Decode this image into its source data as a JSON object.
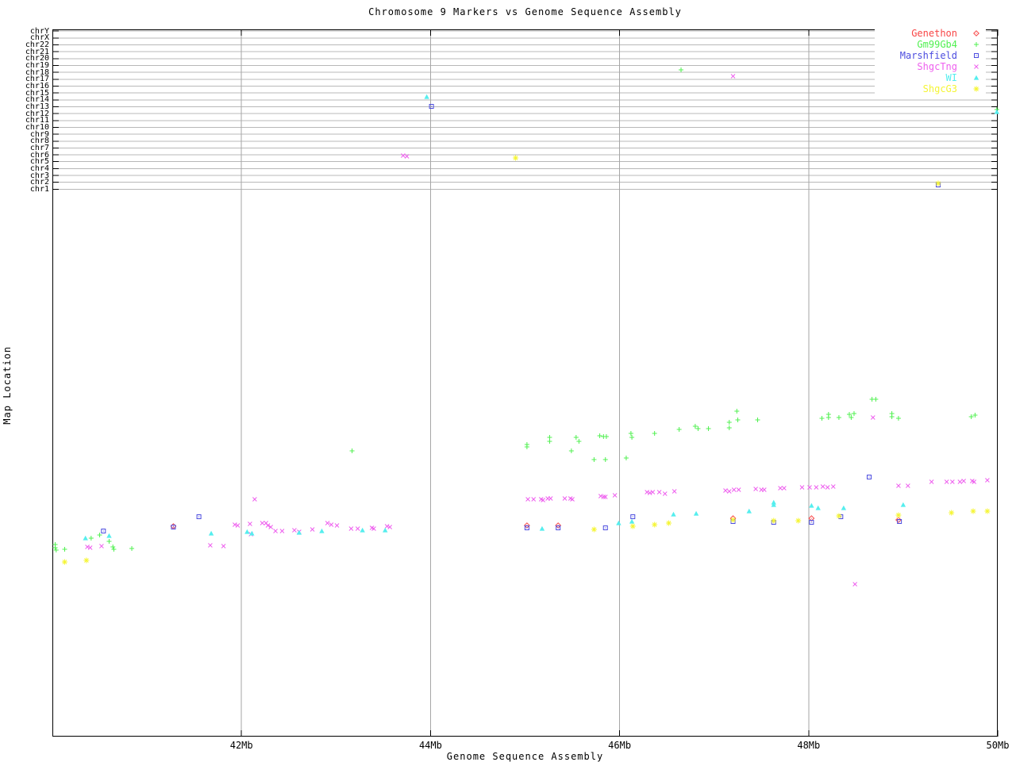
{
  "chart_data": {
    "type": "scatter",
    "title": "Chromosome 9 Markers vs Genome Sequence Assembly",
    "xlabel": "Genome Sequence Assembly",
    "ylabel": "Map Location",
    "x_range_mb": [
      40,
      50
    ],
    "x_ticks": [
      {
        "label": "42Mb",
        "mb": 42
      },
      {
        "label": "44Mb",
        "mb": 44
      },
      {
        "label": "46Mb",
        "mb": 46
      },
      {
        "label": "48Mb",
        "mb": 48
      },
      {
        "label": "50Mb",
        "mb": 50
      }
    ],
    "chromosome_rows": [
      "chrY",
      "chrX",
      "chr22",
      "chr21",
      "chr20",
      "chr19",
      "chr18",
      "chr17",
      "chr16",
      "chr15",
      "chr14",
      "chr13",
      "chr12",
      "chr11",
      "chr10",
      "chr9",
      "chr8",
      "chr7",
      "chr6",
      "chr5",
      "chr4",
      "chr3",
      "chr2",
      "chr1"
    ],
    "grid": true,
    "legend_position": "top-right",
    "y_units": "screen px (map-location axis is unlabeled below the chromosome band)",
    "series": [
      {
        "name": "Genethon",
        "marker": "diamond",
        "color": "#f84545",
        "points": [
          [
            41.28,
            663
          ],
          [
            45.02,
            662
          ],
          [
            45.35,
            662
          ],
          [
            47.2,
            653
          ],
          [
            48.03,
            653
          ],
          [
            48.95,
            655
          ]
        ]
      },
      {
        "name": "Gm99Gb4",
        "marker": "plus",
        "color": "#50f050",
        "points": [
          [
            46.65,
            88
          ],
          [
            49.99,
            138
          ],
          [
            40.03,
            686
          ],
          [
            40.03,
            690
          ],
          [
            40.04,
            693
          ],
          [
            40.13,
            692
          ],
          [
            40.41,
            678
          ],
          [
            40.5,
            674
          ],
          [
            40.6,
            682
          ],
          [
            40.64,
            689
          ],
          [
            40.65,
            692
          ],
          [
            40.84,
            691
          ],
          [
            43.17,
            568
          ],
          [
            45.02,
            560
          ],
          [
            45.02,
            563
          ],
          [
            45.26,
            551
          ],
          [
            45.26,
            556
          ],
          [
            45.49,
            568
          ],
          [
            45.54,
            551
          ],
          [
            45.57,
            556
          ],
          [
            45.73,
            579
          ],
          [
            45.79,
            549
          ],
          [
            45.83,
            550
          ],
          [
            45.86,
            550
          ],
          [
            45.85,
            579
          ],
          [
            46.07,
            577
          ],
          [
            46.12,
            546
          ],
          [
            46.13,
            551
          ],
          [
            46.37,
            546
          ],
          [
            46.63,
            541
          ],
          [
            46.8,
            537
          ],
          [
            46.83,
            540
          ],
          [
            46.94,
            540
          ],
          [
            47.16,
            532
          ],
          [
            47.16,
            539
          ],
          [
            47.24,
            518
          ],
          [
            47.25,
            529
          ],
          [
            47.46,
            529
          ],
          [
            48.14,
            527
          ],
          [
            48.21,
            522
          ],
          [
            48.21,
            526
          ],
          [
            48.32,
            526
          ],
          [
            48.43,
            522
          ],
          [
            48.45,
            526
          ],
          [
            48.48,
            521
          ],
          [
            48.67,
            503
          ],
          [
            48.71,
            503
          ],
          [
            48.88,
            521
          ],
          [
            48.88,
            525
          ],
          [
            48.95,
            527
          ],
          [
            49.72,
            525
          ],
          [
            49.76,
            523
          ]
        ]
      },
      {
        "name": "Marshfield",
        "marker": "square",
        "color": "#4c4cdf",
        "points": [
          [
            44.01,
            134
          ],
          [
            49.37,
            233
          ],
          [
            40.54,
            669
          ],
          [
            41.28,
            664
          ],
          [
            41.55,
            651
          ],
          [
            45.02,
            665
          ],
          [
            45.35,
            665
          ],
          [
            45.85,
            665
          ],
          [
            46.14,
            651
          ],
          [
            47.2,
            657
          ],
          [
            47.63,
            658
          ],
          [
            48.03,
            658
          ],
          [
            48.34,
            651
          ],
          [
            48.64,
            601
          ],
          [
            48.96,
            657
          ]
        ]
      },
      {
        "name": "ShgcTng",
        "marker": "x",
        "color": "#ee5fee",
        "points": [
          [
            47.2,
            96
          ],
          [
            43.71,
            196
          ],
          [
            43.75,
            197
          ],
          [
            40.37,
            689
          ],
          [
            40.4,
            690
          ],
          [
            40.52,
            688
          ],
          [
            41.67,
            687
          ],
          [
            41.81,
            688
          ],
          [
            41.93,
            661
          ],
          [
            41.96,
            662
          ],
          [
            42.09,
            660
          ],
          [
            42.1,
            673
          ],
          [
            42.14,
            629
          ],
          [
            42.22,
            659
          ],
          [
            42.26,
            659
          ],
          [
            42.28,
            662
          ],
          [
            42.31,
            664
          ],
          [
            42.36,
            669
          ],
          [
            42.43,
            669
          ],
          [
            42.56,
            668
          ],
          [
            42.61,
            670
          ],
          [
            42.75,
            667
          ],
          [
            42.91,
            659
          ],
          [
            42.95,
            661
          ],
          [
            43.01,
            662
          ],
          [
            43.16,
            666
          ],
          [
            43.23,
            666
          ],
          [
            43.38,
            665
          ],
          [
            43.4,
            666
          ],
          [
            43.54,
            663
          ],
          [
            43.57,
            664
          ],
          [
            45.03,
            629
          ],
          [
            45.09,
            629
          ],
          [
            45.17,
            629
          ],
          [
            45.19,
            630
          ],
          [
            45.24,
            628
          ],
          [
            45.27,
            628
          ],
          [
            45.42,
            628
          ],
          [
            45.48,
            628
          ],
          [
            45.5,
            629
          ],
          [
            45.8,
            625
          ],
          [
            45.83,
            626
          ],
          [
            45.85,
            626
          ],
          [
            45.95,
            624
          ],
          [
            46.29,
            620
          ],
          [
            46.32,
            621
          ],
          [
            46.35,
            620
          ],
          [
            46.42,
            620
          ],
          [
            46.48,
            622
          ],
          [
            46.58,
            619
          ],
          [
            47.12,
            618
          ],
          [
            47.16,
            619
          ],
          [
            47.21,
            617
          ],
          [
            47.26,
            617
          ],
          [
            47.44,
            616
          ],
          [
            47.5,
            617
          ],
          [
            47.53,
            617
          ],
          [
            47.7,
            615
          ],
          [
            47.74,
            615
          ],
          [
            47.93,
            614
          ],
          [
            48.01,
            614
          ],
          [
            48.08,
            614
          ],
          [
            48.15,
            613
          ],
          [
            48.2,
            614
          ],
          [
            48.26,
            613
          ],
          [
            48.49,
            736
          ],
          [
            48.68,
            526
          ],
          [
            48.95,
            612
          ],
          [
            49.05,
            612
          ],
          [
            49.3,
            607
          ],
          [
            49.46,
            607
          ],
          [
            49.52,
            607
          ],
          [
            49.6,
            607
          ],
          [
            49.64,
            606
          ],
          [
            49.73,
            606
          ],
          [
            49.75,
            607
          ],
          [
            49.89,
            605
          ]
        ]
      },
      {
        "name": "WI",
        "marker": "triangle",
        "color": "#55eeee",
        "points": [
          [
            43.96,
            122
          ],
          [
            49.99,
            141
          ],
          [
            40.35,
            678
          ],
          [
            40.6,
            675
          ],
          [
            41.68,
            672
          ],
          [
            42.06,
            670
          ],
          [
            42.11,
            672
          ],
          [
            42.61,
            671
          ],
          [
            42.85,
            669
          ],
          [
            43.28,
            668
          ],
          [
            43.52,
            668
          ],
          [
            45.18,
            666
          ],
          [
            45.99,
            659
          ],
          [
            46.13,
            657
          ],
          [
            46.57,
            648
          ],
          [
            46.81,
            647
          ],
          [
            47.37,
            644
          ],
          [
            47.63,
            633
          ],
          [
            47.63,
            636
          ],
          [
            48.03,
            637
          ],
          [
            48.1,
            640
          ],
          [
            48.37,
            640
          ],
          [
            49.0,
            636
          ]
        ]
      },
      {
        "name": "ShgcG3",
        "marker": "asterisk",
        "color": "#f5f535",
        "points": [
          [
            44.9,
            199
          ],
          [
            49.37,
            231
          ],
          [
            40.13,
            708
          ],
          [
            40.36,
            706
          ],
          [
            45.73,
            667
          ],
          [
            46.14,
            663
          ],
          [
            46.37,
            661
          ],
          [
            46.52,
            659
          ],
          [
            47.2,
            655
          ],
          [
            47.63,
            656
          ],
          [
            47.89,
            656
          ],
          [
            48.32,
            650
          ],
          [
            48.95,
            649
          ],
          [
            49.51,
            646
          ],
          [
            49.74,
            644
          ],
          [
            49.89,
            644
          ]
        ]
      }
    ]
  }
}
